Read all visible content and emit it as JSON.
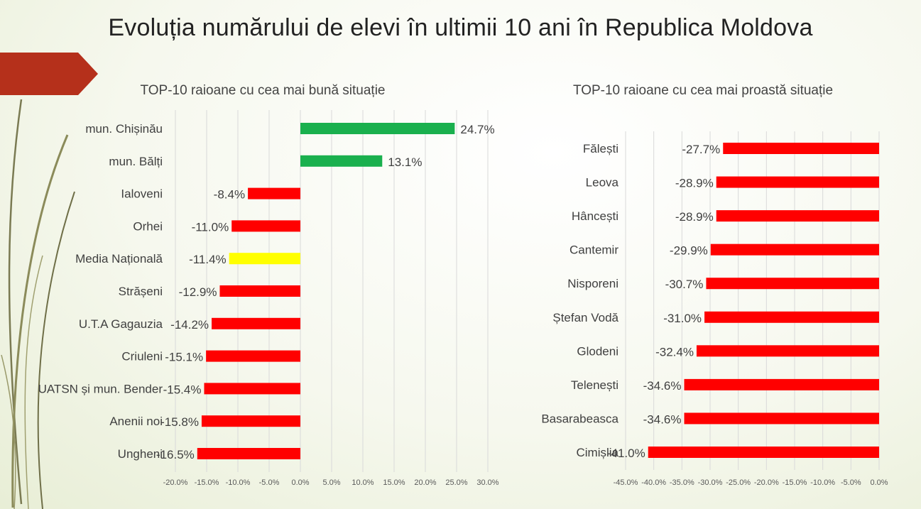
{
  "slide": {
    "title": "Evoluția numărului de elevi în ultimii 10 ani în Republica Moldova"
  },
  "colors": {
    "positive": "#1ab04e",
    "negative": "#ff0000",
    "national": "#ffff00",
    "accent_arrow": "#b5301b",
    "grid": "#d9d9d9"
  },
  "chart_data": [
    {
      "type": "bar",
      "orientation": "horizontal",
      "title": "TOP-10 raioane cu cea mai bună situație",
      "categories": [
        "mun. Chișinău",
        "mun. Bălți",
        "Ialoveni",
        "Orhei",
        "Media Națională",
        "Strășeni",
        "U.T.A Gagauzia",
        "Criuleni",
        "UATSN și mun. Bender",
        "Anenii noi",
        "Ungheni"
      ],
      "values": [
        24.7,
        13.1,
        -8.4,
        -11.0,
        -11.4,
        -12.9,
        -14.2,
        -15.1,
        -15.4,
        -15.8,
        -16.5
      ],
      "value_labels": [
        "24.7%",
        "13.1%",
        "-8.4%",
        "-11.0%",
        "-11.4%",
        "-12.9%",
        "-14.2%",
        "-15.1%",
        "-15.4%",
        "-15.8%",
        "-16.5%"
      ],
      "xlim": [
        -20,
        30
      ],
      "x_ticks": [
        -20,
        -15,
        -10,
        -5,
        0,
        5,
        10,
        15,
        20,
        25,
        30
      ],
      "x_tick_labels": [
        "-20.0%",
        "-15.0%",
        "-10.0%",
        "-5.0%",
        "0.0%",
        "5.0%",
        "10.0%",
        "15.0%",
        "20.0%",
        "25.0%",
        "30.0%"
      ],
      "grid": true,
      "legend": "none"
    },
    {
      "type": "bar",
      "orientation": "horizontal",
      "title": "TOP-10 raioane cu cea mai proastă situație",
      "categories": [
        "Fălești",
        "Leova",
        "Hâncești",
        "Cantemir",
        "Nisporeni",
        "Ștefan Vodă",
        "Glodeni",
        "Telenești",
        "Basarabeasca",
        "Cimișlia"
      ],
      "values": [
        -27.7,
        -28.9,
        -28.9,
        -29.9,
        -30.7,
        -31.0,
        -32.4,
        -34.6,
        -34.6,
        -41.0
      ],
      "value_labels": [
        "-27.7%",
        "-28.9%",
        "-28.9%",
        "-29.9%",
        "-30.7%",
        "-31.0%",
        "-32.4%",
        "-34.6%",
        "-34.6%",
        "-41.0%"
      ],
      "xlim": [
        -45,
        0
      ],
      "x_ticks": [
        -45,
        -40,
        -35,
        -30,
        -25,
        -20,
        -15,
        -10,
        -5,
        0
      ],
      "x_tick_labels": [
        "-45.0%",
        "-40.0%",
        "-35.0%",
        "-30.0%",
        "-25.0%",
        "-20.0%",
        "-15.0%",
        "-10.0%",
        "-5.0%",
        "0.0%"
      ],
      "grid": true,
      "legend": "none"
    }
  ]
}
